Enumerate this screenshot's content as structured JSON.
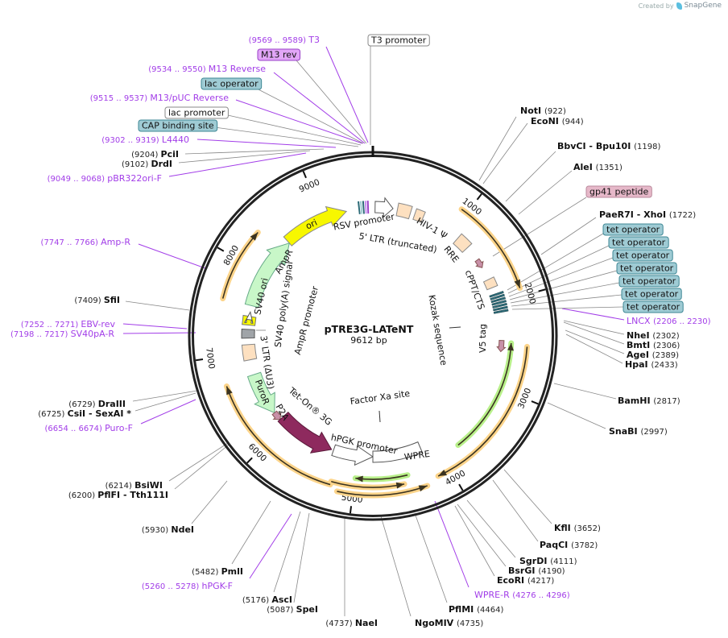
{
  "header": {
    "credit": "Created by",
    "brand": "SnapGene"
  },
  "map": {
    "name": "pTRE3G-LATeNT",
    "size": "9612 bp"
  },
  "ticks": [
    "1000",
    "2000",
    "3000",
    "4000",
    "5000",
    "6000",
    "7000",
    "8000",
    "9000"
  ],
  "enzymes": [
    {
      "name": "PciI",
      "pos": "(9204)"
    },
    {
      "name": "DrdI",
      "pos": "(9102)"
    },
    {
      "name": "NotI",
      "pos": "(922)"
    },
    {
      "name": "EcoNI",
      "pos": "(944)"
    },
    {
      "name": "BbvCI  - Bpu10I",
      "pos": "(1198)"
    },
    {
      "name": "AleI",
      "pos": "(1351)"
    },
    {
      "name": "PaeR7I  - XhoI",
      "pos": "(1722)"
    },
    {
      "name": "NheI",
      "pos": "(2302)"
    },
    {
      "name": "BmtI",
      "pos": "(2306)"
    },
    {
      "name": "AgeI",
      "pos": "(2389)"
    },
    {
      "name": "HpaI",
      "pos": "(2433)"
    },
    {
      "name": "BamHI",
      "pos": "(2817)"
    },
    {
      "name": "SnaBI",
      "pos": "(2997)"
    },
    {
      "name": "KflI",
      "pos": "(3652)"
    },
    {
      "name": "PaqCI",
      "pos": "(3782)"
    },
    {
      "name": "SgrDI",
      "pos": "(4111)"
    },
    {
      "name": "BsrGI",
      "pos": "(4190)"
    },
    {
      "name": "EcoRI",
      "pos": "(4217)"
    },
    {
      "name": "PflMI",
      "pos": "(4464)"
    },
    {
      "name": "NgoMIV",
      "pos": "(4735)"
    },
    {
      "name": "NaeI",
      "pos": "(4737)"
    },
    {
      "name": "SpeI",
      "pos": "(5087)"
    },
    {
      "name": "AscI",
      "pos": "(5176)"
    },
    {
      "name": "PmlI",
      "pos": "(5482)"
    },
    {
      "name": "NdeI",
      "pos": "(5930)"
    },
    {
      "name": "BsiWI",
      "pos": "(6214)"
    },
    {
      "name": "PflFI  - Tth111I",
      "pos": "(6200)"
    },
    {
      "name": "DraIII",
      "pos": "(6729)"
    },
    {
      "name": "CsiI  - SexAI *",
      "pos": "(6725)"
    },
    {
      "name": "SfiI",
      "pos": "(7409)"
    }
  ],
  "primers": [
    {
      "name": "T3",
      "range": "(9569 .. 9589)"
    },
    {
      "name": "M13 Reverse",
      "range": "(9534 .. 9550)"
    },
    {
      "name": "M13/pUC Reverse",
      "range": "(9515 .. 9537)"
    },
    {
      "name": "L4440",
      "range": "(9302 .. 9319)"
    },
    {
      "name": "pBR322ori-F",
      "range": "(9049 .. 9068)"
    },
    {
      "name": "LNCX",
      "range": "(2206 .. 2230)"
    },
    {
      "name": "WPRE-R",
      "range": "(4276 .. 4296)"
    },
    {
      "name": "hPGK-F",
      "range": "(5260 .. 5278)"
    },
    {
      "name": "Puro-F",
      "range": "(6654 .. 6674)"
    },
    {
      "name": "SV40pA-R",
      "range": "(7198 .. 7217)"
    },
    {
      "name": "EBV-rev",
      "range": "(7252 .. 7271)"
    },
    {
      "name": "Amp-R",
      "range": "(7747 .. 7766)"
    }
  ],
  "callouts": [
    {
      "label": "T3 promoter",
      "fill": "#ffffff",
      "stroke": "#888888"
    },
    {
      "label": "M13 rev",
      "fill": "#e2a6f7",
      "stroke": "#9a40c8"
    },
    {
      "label": "lac operator",
      "fill": "#9fcbd4",
      "stroke": "#3d8794"
    },
    {
      "label": "lac promoter",
      "fill": "#ffffff",
      "stroke": "#888888"
    },
    {
      "label": "CAP binding site",
      "fill": "#9fcbd4",
      "stroke": "#3d8794"
    },
    {
      "label": "gp41 peptide",
      "fill": "#e6b8c9",
      "stroke": "#b98a9c"
    },
    {
      "label": "tet operator",
      "fill": "#9fcbd4",
      "stroke": "#3d8794"
    },
    {
      "label": "tet operator",
      "fill": "#9fcbd4",
      "stroke": "#3d8794"
    },
    {
      "label": "tet operator",
      "fill": "#9fcbd4",
      "stroke": "#3d8794"
    },
    {
      "label": "tet operator",
      "fill": "#9fcbd4",
      "stroke": "#3d8794"
    },
    {
      "label": "tet operator",
      "fill": "#9fcbd4",
      "stroke": "#3d8794"
    },
    {
      "label": "tet operator",
      "fill": "#9fcbd4",
      "stroke": "#3d8794"
    },
    {
      "label": "tet operator",
      "fill": "#9fcbd4",
      "stroke": "#3d8794"
    }
  ],
  "inner_labels": [
    "RSV promoter",
    "5' LTR (truncated)",
    "HIV-1 Ψ",
    "RRE",
    "cPPT/CTS",
    "V5 tag",
    "Kozak sequence",
    "Factor Xa site",
    "WPRE",
    "hPGK promoter",
    "Tet-On® 3G",
    "P2A",
    "PuroR",
    "3' LTR (ΔU3)",
    "SV40 poly(A) signal",
    "SV40 ori",
    "AmpR promoter",
    "AmpR",
    "ori"
  ],
  "colors": {
    "primer": "#a23de8",
    "orf_glow": "#fcd48a",
    "orf_green_glow": "#b8f08a",
    "backbone": "#222222",
    "tet_on": "#8e2a5e",
    "ori": "#f7f700",
    "resistance": "#c8f7c8",
    "ltr": "#fde0c0"
  }
}
